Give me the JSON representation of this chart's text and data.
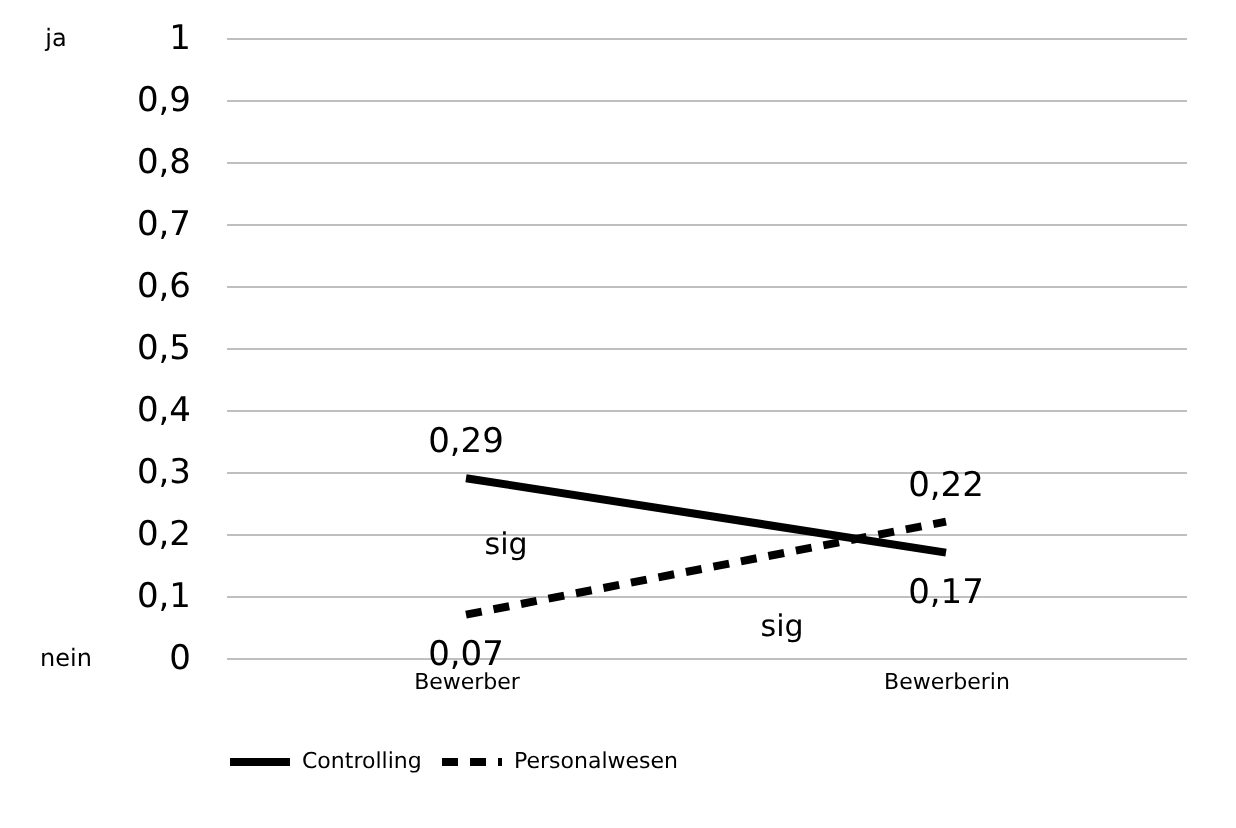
{
  "chart_data": {
    "type": "line",
    "categories": [
      "Bewerber",
      "Bewerberin"
    ],
    "series": [
      {
        "name": "Controlling",
        "color": "#000000",
        "line_style": "solid",
        "values": [
          0.29,
          0.17
        ],
        "value_labels": [
          "0,29",
          "0,17"
        ]
      },
      {
        "name": "Personalwesen",
        "color": "#000000",
        "line_style": "dashed",
        "values": [
          0.07,
          0.22
        ],
        "value_labels": [
          "0,07",
          "0,22"
        ]
      }
    ],
    "ylim": [
      0,
      1
    ],
    "yticks": [
      {
        "value": 0,
        "label": "0"
      },
      {
        "value": 0.1,
        "label": "0,1"
      },
      {
        "value": 0.2,
        "label": "0,2"
      },
      {
        "value": 0.3,
        "label": "0,3"
      },
      {
        "value": 0.4,
        "label": "0,4"
      },
      {
        "value": 0.5,
        "label": "0,5"
      },
      {
        "value": 0.6,
        "label": "0,6"
      },
      {
        "value": 0.7,
        "label": "0,7"
      },
      {
        "value": 0.8,
        "label": "0,8"
      },
      {
        "value": 0.9,
        "label": "0,9"
      },
      {
        "value": 1,
        "label": "1"
      }
    ],
    "annotations": [
      "ja",
      "nein",
      "sig",
      "sig"
    ],
    "grid": "y",
    "legend": "bottom",
    "marker": "none"
  }
}
